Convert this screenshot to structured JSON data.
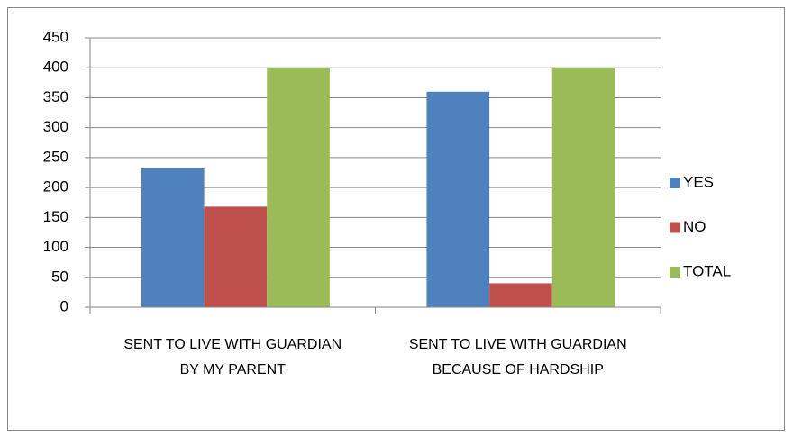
{
  "chart_data": {
    "type": "bar",
    "categories": [
      "SENT TO LIVE WITH GUARDIAN BY MY PARENT",
      "SENT TO LIVE WITH GUARDIAN BECAUSE OF HARDSHIP"
    ],
    "series": [
      {
        "name": "YES",
        "color": "#4f81bd",
        "values": [
          232,
          360
        ]
      },
      {
        "name": "NO",
        "color": "#c0504d",
        "values": [
          168,
          40
        ]
      },
      {
        "name": "TOTAL",
        "color": "#9bbb59",
        "values": [
          400,
          400
        ]
      }
    ],
    "ylim": [
      0,
      450
    ],
    "yticks": [
      0,
      50,
      100,
      150,
      200,
      250,
      300,
      350,
      400,
      450
    ],
    "grid": true,
    "legend": "right"
  }
}
